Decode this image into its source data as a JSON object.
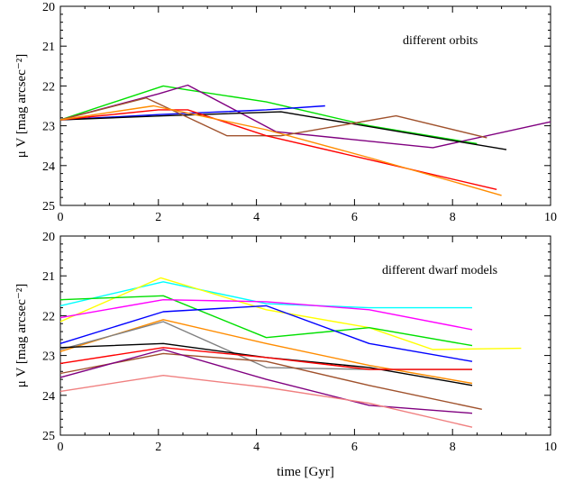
{
  "chart_data": [
    {
      "type": "line",
      "annotation": "different orbits",
      "ylabel": "μ V [mag arcsec⁻²]",
      "xlabel": "",
      "xlim": [
        0,
        10
      ],
      "ylim": [
        20,
        25
      ],
      "y_inverted": true,
      "xticks": [
        "0",
        "2",
        "4",
        "6",
        "8",
        "10"
      ],
      "yticks": [
        "20",
        "21",
        "22",
        "23",
        "24",
        "25"
      ],
      "series": [
        {
          "color": "#00e000",
          "x": [
            0,
            2.1,
            2.6,
            4.2,
            6.3,
            8.5
          ],
          "y": [
            22.85,
            22.0,
            22.1,
            22.4,
            23.0,
            23.45
          ]
        },
        {
          "color": "#800080",
          "x": [
            0,
            2.0,
            2.6,
            4.4,
            7.6,
            10.0
          ],
          "y": [
            22.85,
            22.2,
            21.98,
            23.15,
            23.55,
            22.9
          ]
        },
        {
          "color": "#0000ff",
          "x": [
            0,
            2.0,
            4.2,
            5.4
          ],
          "y": [
            22.85,
            22.72,
            22.6,
            22.5
          ]
        },
        {
          "color": "#000000",
          "x": [
            0,
            2.1,
            4.5,
            9.1
          ],
          "y": [
            22.85,
            22.75,
            22.65,
            23.6
          ]
        },
        {
          "color": "#a0522d",
          "x": [
            0,
            1.75,
            3.4,
            4.5,
            6.85,
            8.7
          ],
          "y": [
            22.85,
            22.3,
            23.25,
            23.25,
            22.75,
            23.3
          ]
        },
        {
          "color": "#ff0000",
          "x": [
            0,
            2.0,
            2.6,
            4.2,
            6.3,
            8.9
          ],
          "y": [
            22.85,
            22.6,
            22.6,
            23.25,
            23.85,
            24.6
          ]
        },
        {
          "color": "#ff8c00",
          "x": [
            0,
            1.9,
            4.2,
            6.3,
            9.0
          ],
          "y": [
            22.85,
            22.5,
            23.1,
            23.8,
            24.75
          ]
        }
      ]
    },
    {
      "type": "line",
      "annotation": "different dwarf models",
      "ylabel": "μ V [mag arcsec⁻²]",
      "xlabel": "time [Gyr]",
      "xlim": [
        0,
        10
      ],
      "ylim": [
        20,
        25
      ],
      "y_inverted": true,
      "xticks": [
        "0",
        "2",
        "4",
        "6",
        "8",
        "10"
      ],
      "yticks": [
        "20",
        "21",
        "22",
        "23",
        "24",
        "25"
      ],
      "series": [
        {
          "color": "#00ffff",
          "x": [
            0,
            2.1,
            4.2,
            6.3,
            8.4
          ],
          "y": [
            21.75,
            21.15,
            21.7,
            21.8,
            21.8
          ]
        },
        {
          "color": "#ffff00",
          "x": [
            0,
            2.05,
            4.2,
            6.3,
            7.6,
            9.4
          ],
          "y": [
            22.15,
            21.05,
            21.85,
            22.3,
            22.85,
            22.82
          ]
        },
        {
          "color": "#00e000",
          "x": [
            0,
            2.1,
            4.2,
            6.3,
            8.4
          ],
          "y": [
            21.6,
            21.5,
            22.55,
            22.3,
            22.75
          ]
        },
        {
          "color": "#ff00ff",
          "x": [
            0,
            2.1,
            4.2,
            6.3,
            8.4
          ],
          "y": [
            22.05,
            21.6,
            21.65,
            21.85,
            22.35
          ]
        },
        {
          "color": "#0000ff",
          "x": [
            0,
            2.1,
            4.2,
            6.3,
            8.4
          ],
          "y": [
            22.7,
            21.9,
            21.75,
            22.7,
            23.15
          ]
        },
        {
          "color": "#ff8c00",
          "x": [
            0,
            2.1,
            4.2,
            6.3,
            8.4
          ],
          "y": [
            22.9,
            22.1,
            22.7,
            23.25,
            23.7
          ]
        },
        {
          "color": "#808080",
          "x": [
            0,
            2.1,
            4.2,
            6.3,
            8.4
          ],
          "y": [
            22.85,
            22.15,
            23.3,
            23.35,
            23.35
          ]
        },
        {
          "color": "#000000",
          "x": [
            0,
            2.1,
            4.2,
            6.3,
            8.4
          ],
          "y": [
            22.8,
            22.7,
            23.05,
            23.3,
            23.75
          ]
        },
        {
          "color": "#ff0000",
          "x": [
            0,
            2.1,
            4.2,
            6.3,
            8.4
          ],
          "y": [
            23.2,
            22.8,
            23.05,
            23.35,
            23.35
          ]
        },
        {
          "color": "#a0522d",
          "x": [
            0,
            2.1,
            4.2,
            6.3,
            8.6
          ],
          "y": [
            23.45,
            22.95,
            23.15,
            23.75,
            24.35
          ]
        },
        {
          "color": "#800080",
          "x": [
            0,
            2.1,
            4.2,
            6.3,
            8.4
          ],
          "y": [
            23.55,
            22.85,
            23.6,
            24.25,
            24.45
          ]
        },
        {
          "color": "#f08080",
          "x": [
            0,
            2.1,
            4.2,
            6.3,
            8.4
          ],
          "y": [
            23.9,
            23.5,
            23.8,
            24.2,
            24.8
          ]
        }
      ]
    }
  ]
}
